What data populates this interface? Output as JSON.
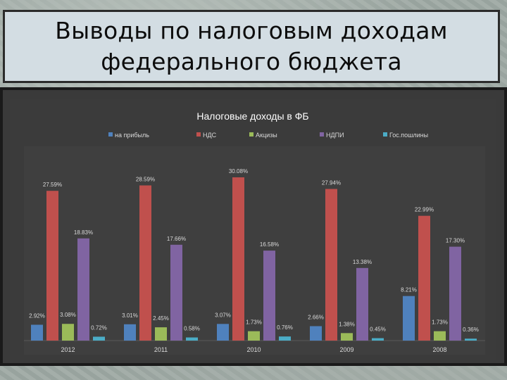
{
  "slide": {
    "title": "Выводы по налоговым доходам федерального бюджета"
  },
  "chart_data": {
    "type": "bar",
    "title": "Налоговые доходы в ФБ",
    "categories": [
      "2012",
      "2011",
      "2010",
      "2009",
      "2008"
    ],
    "series": [
      {
        "name": "на прибыль",
        "color": "#4f81bd",
        "values": [
          2.92,
          3.01,
          3.07,
          2.66,
          8.21
        ]
      },
      {
        "name": "НДС",
        "color": "#c0504d",
        "values": [
          27.59,
          28.59,
          30.08,
          27.94,
          22.99
        ]
      },
      {
        "name": "Акцизы",
        "color": "#9bbb59",
        "values": [
          3.08,
          2.45,
          1.73,
          1.38,
          1.73
        ]
      },
      {
        "name": "НДПИ",
        "color": "#8064a2",
        "values": [
          18.83,
          17.66,
          16.58,
          13.38,
          17.3
        ]
      },
      {
        "name": "Гос.пошлины",
        "color": "#4bacc6",
        "values": [
          0.72,
          0.58,
          0.76,
          0.45,
          0.36
        ]
      }
    ],
    "data_labels": [
      [
        "2.92%",
        "27.59%",
        "3.08%",
        "18.83%",
        "0.72%"
      ],
      [
        "3.01%",
        "28.59%",
        "2.45%",
        "17.66%",
        "0.58%"
      ],
      [
        "3.07%",
        "30.08%",
        "1.73%",
        "16.58%",
        "0.76%"
      ],
      [
        "2.66%",
        "27.94%",
        "1.38%",
        "13.38%",
        "0.45%"
      ],
      [
        "8.21%",
        "22.99%",
        "1.73%",
        "17.30%",
        "0.36%"
      ]
    ],
    "ylim": [
      0,
      32
    ],
    "legend_position": "top",
    "grid": false
  }
}
